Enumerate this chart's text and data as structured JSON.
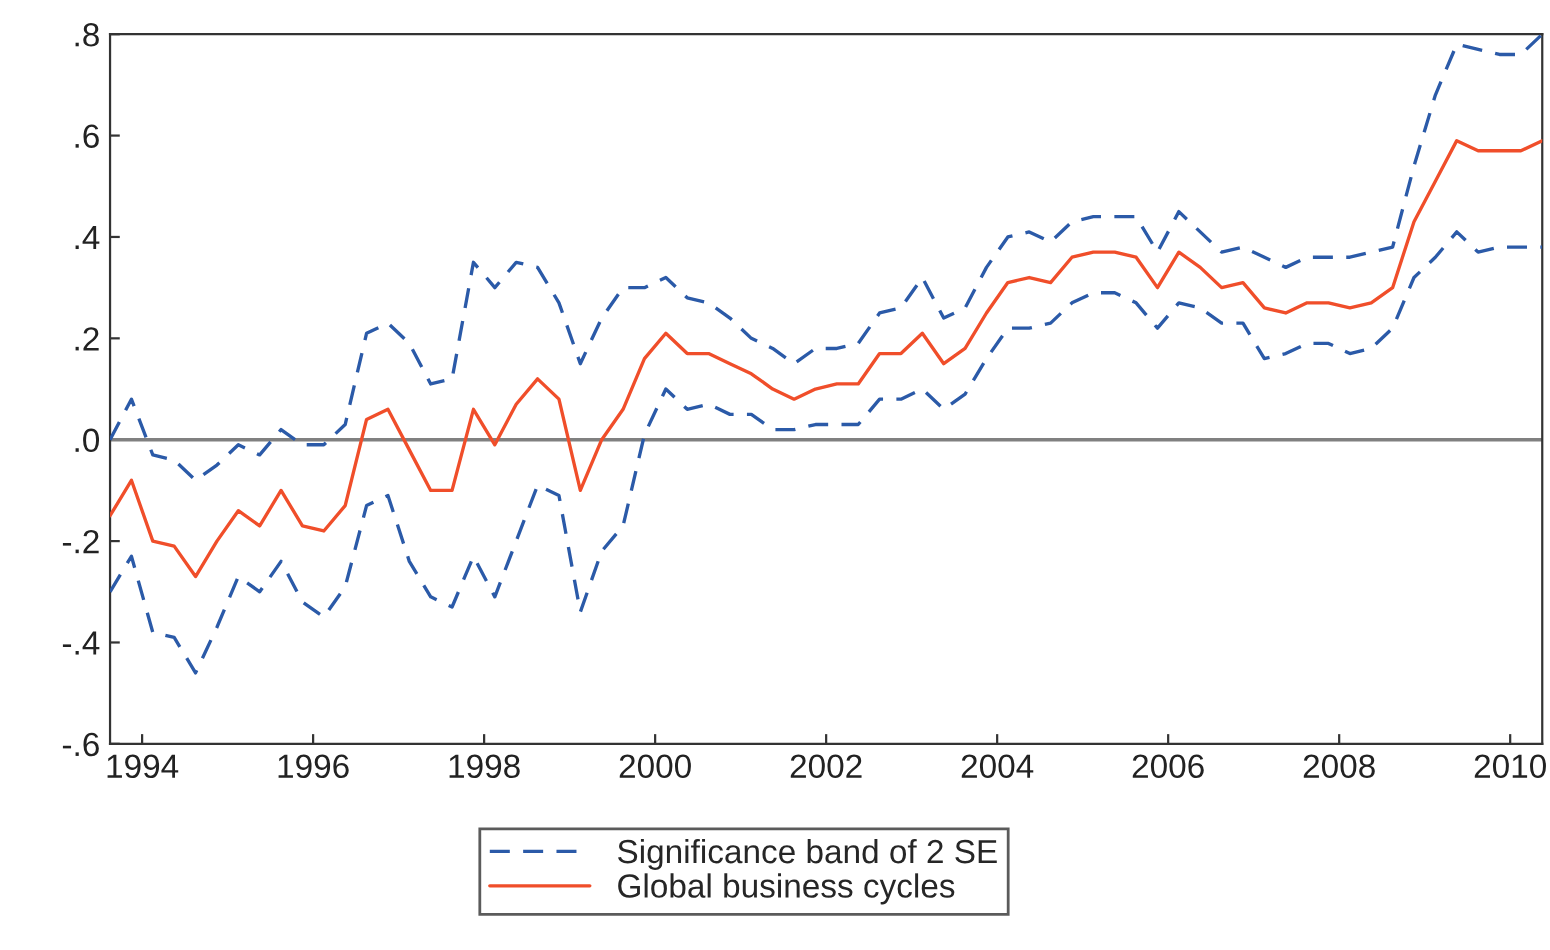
{
  "chart_data": {
    "type": "line",
    "x": [
      1994,
      1994.25,
      1994.5,
      1994.75,
      1995,
      1995.25,
      1995.5,
      1995.75,
      1996,
      1996.25,
      1996.5,
      1996.75,
      1997,
      1997.25,
      1997.5,
      1997.75,
      1998,
      1998.25,
      1998.5,
      1998.75,
      1999,
      1999.25,
      1999.5,
      1999.75,
      2000,
      2000.25,
      2000.5,
      2000.75,
      2001,
      2001.25,
      2001.5,
      2001.75,
      2002,
      2002.25,
      2002.5,
      2002.75,
      2003,
      2003.25,
      2003.5,
      2003.75,
      2004,
      2004.25,
      2004.5,
      2004.75,
      2005,
      2005.25,
      2005.5,
      2005.75,
      2006,
      2006.25,
      2006.5,
      2006.75,
      2007,
      2007.25,
      2007.5,
      2007.75,
      2008,
      2008.25,
      2008.5,
      2008.75,
      2009,
      2009.25,
      2009.5,
      2009.75,
      2010,
      2010.25,
      2010.5,
      2010.75
    ],
    "series": [
      {
        "name": "Significance band of 2 SE",
        "color": "#2b5aa8",
        "line_style": "dashed",
        "values": [
          0.0,
          0.08,
          -0.03,
          -0.04,
          -0.08,
          -0.05,
          -0.01,
          -0.03,
          0.02,
          -0.01,
          -0.01,
          0.03,
          0.21,
          0.23,
          0.19,
          0.11,
          0.12,
          0.35,
          0.3,
          0.35,
          0.34,
          0.27,
          0.15,
          0.24,
          0.3,
          0.3,
          0.32,
          0.28,
          0.27,
          0.24,
          0.2,
          0.18,
          0.15,
          0.18,
          0.18,
          0.19,
          0.25,
          0.26,
          0.32,
          0.24,
          0.26,
          0.34,
          0.4,
          0.41,
          0.39,
          0.43,
          0.44,
          0.44,
          0.44,
          0.37,
          0.45,
          0.41,
          0.37,
          0.38,
          0.36,
          0.34,
          0.36,
          0.36,
          0.36,
          0.37,
          0.38,
          0.54,
          0.68,
          0.78,
          0.77,
          0.76,
          0.76,
          0.8
        ]
      },
      {
        "color": "#2b5aa8",
        "line_style": "dashed",
        "values": [
          -0.3,
          -0.23,
          -0.38,
          -0.39,
          -0.46,
          -0.37,
          -0.27,
          -0.3,
          -0.24,
          -0.32,
          -0.35,
          -0.29,
          -0.13,
          -0.11,
          -0.24,
          -0.31,
          -0.33,
          -0.23,
          -0.31,
          -0.2,
          -0.09,
          -0.11,
          -0.34,
          -0.22,
          -0.17,
          0.01,
          0.1,
          0.06,
          0.07,
          0.05,
          0.05,
          0.02,
          0.02,
          0.03,
          0.03,
          0.03,
          0.08,
          0.08,
          0.1,
          0.06,
          0.09,
          0.16,
          0.22,
          0.22,
          0.23,
          0.27,
          0.29,
          0.29,
          0.27,
          0.22,
          0.27,
          0.26,
          0.23,
          0.23,
          0.16,
          0.17,
          0.19,
          0.19,
          0.17,
          0.18,
          0.22,
          0.32,
          0.36,
          0.41,
          0.37,
          0.38,
          0.38,
          0.38
        ]
      },
      {
        "name": "Global business cycles",
        "color": "#f04e2a",
        "line_style": "solid",
        "values": [
          -0.15,
          -0.08,
          -0.2,
          -0.21,
          -0.27,
          -0.2,
          -0.14,
          -0.17,
          -0.1,
          -0.17,
          -0.18,
          -0.13,
          0.04,
          0.06,
          -0.02,
          -0.1,
          -0.1,
          0.06,
          -0.01,
          0.07,
          0.12,
          0.08,
          -0.1,
          0.0,
          0.06,
          0.16,
          0.21,
          0.17,
          0.17,
          0.15,
          0.13,
          0.1,
          0.08,
          0.1,
          0.11,
          0.11,
          0.17,
          0.17,
          0.21,
          0.15,
          0.18,
          0.25,
          0.31,
          0.32,
          0.31,
          0.36,
          0.37,
          0.37,
          0.36,
          0.3,
          0.37,
          0.34,
          0.3,
          0.31,
          0.26,
          0.25,
          0.27,
          0.27,
          0.26,
          0.27,
          0.3,
          0.43,
          0.51,
          0.59,
          0.57,
          0.57,
          0.57,
          0.59
        ]
      }
    ],
    "xlim": [
      1994,
      2010.75
    ],
    "xticks": [
      {
        "value": 1994.375,
        "label": "1994"
      },
      {
        "value": 1996.375,
        "label": "1996"
      },
      {
        "value": 1998.375,
        "label": "1998"
      },
      {
        "value": 2000.375,
        "label": "2000"
      },
      {
        "value": 2002.375,
        "label": "2002"
      },
      {
        "value": 2004.375,
        "label": "2004"
      },
      {
        "value": 2006.375,
        "label": "2006"
      },
      {
        "value": 2008.375,
        "label": "2008"
      },
      {
        "value": 2010.375,
        "label": "2010"
      }
    ],
    "ylim": [
      -0.6,
      0.8
    ],
    "yticks": [
      {
        "value": -0.6,
        "label": "-.6"
      },
      {
        "value": -0.4,
        "label": "-.4"
      },
      {
        "value": -0.2,
        "label": "-.2"
      },
      {
        "value": 0,
        "label": ".0"
      },
      {
        "value": 0.2,
        "label": ".2"
      },
      {
        "value": 0.4,
        "label": ".4"
      },
      {
        "value": 0.6,
        "label": ".6"
      },
      {
        "value": 0.8,
        "label": ".8"
      }
    ],
    "ref_lines": [
      {
        "axis": "y",
        "value": 0,
        "color": "#808080",
        "line_style": "solid"
      }
    ],
    "grid": false,
    "legend": "bottom"
  }
}
